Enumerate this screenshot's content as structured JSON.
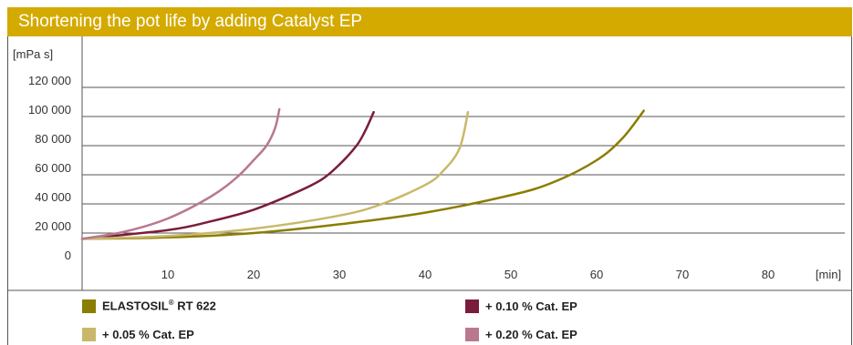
{
  "chart_data": {
    "type": "line",
    "title": "Shortening the pot life by adding Catalyst EP",
    "ylabel": "[mPa s]",
    "xlabel": "[min]",
    "ylim": [
      0,
      120000
    ],
    "xlim": [
      0,
      90
    ],
    "y_ticks": [
      "0",
      "20 000",
      "40 000",
      "60 000",
      "80 000",
      "100 000",
      "120 000"
    ],
    "y_tick_values": [
      0,
      20000,
      40000,
      60000,
      80000,
      100000,
      120000
    ],
    "x_ticks": [
      "10",
      "20",
      "30",
      "40",
      "50",
      "60",
      "70",
      "80"
    ],
    "x_tick_values": [
      10,
      20,
      30,
      40,
      50,
      60,
      70,
      80
    ],
    "grid": "horizontal",
    "legend_position": "bottom",
    "series": [
      {
        "name": "ELASTOSIL® RT 622",
        "name_main": "ELASTOSIL",
        "name_sup": "®",
        "name_rest": " RT 622",
        "color": "#8b7d00",
        "x": [
          0,
          10,
          20,
          30,
          40,
          50,
          55,
          60,
          63,
          65.5
        ],
        "y": [
          16000,
          17000,
          20000,
          26000,
          34000,
          46000,
          55000,
          70000,
          85000,
          104000
        ]
      },
      {
        "name": "+ 0.10 % Cat. EP",
        "color": "#7a1c3c",
        "x": [
          0,
          10,
          15,
          20,
          25,
          28,
          30,
          32,
          33,
          34
        ],
        "y": [
          16000,
          22000,
          28000,
          36000,
          48000,
          57000,
          67000,
          80000,
          90000,
          103000
        ]
      },
      {
        "name": "+ 0.05 % Cat. EP",
        "color": "#c9b86a",
        "x": [
          0,
          10,
          20,
          30,
          35,
          40,
          42,
          44,
          45
        ],
        "y": [
          16000,
          18000,
          23000,
          32000,
          40000,
          53000,
          62000,
          78000,
          103000
        ]
      },
      {
        "name": "+ 0.20 % Cat. EP",
        "color": "#b97890",
        "x": [
          0,
          5,
          10,
          15,
          18,
          20,
          21.5,
          22.5,
          23
        ],
        "y": [
          16000,
          21000,
          30000,
          45000,
          58000,
          70000,
          80000,
          92000,
          105000
        ]
      }
    ]
  }
}
